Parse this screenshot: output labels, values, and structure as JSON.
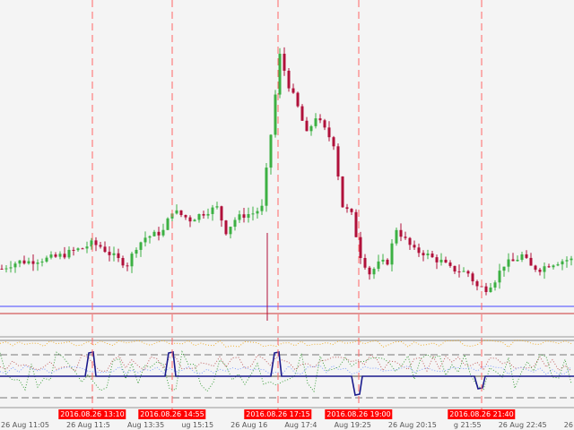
{
  "chart_data": {
    "type": "candlestick",
    "closes": [
      80,
      85,
      88,
      88,
      90,
      91,
      93,
      96,
      100,
      103,
      108,
      105,
      97,
      90,
      85,
      105,
      115,
      118,
      122,
      145,
      140,
      135,
      140,
      145,
      148,
      122,
      135,
      140,
      142,
      148,
      230,
      318,
      285,
      260,
      230,
      250,
      235,
      220,
      150,
      140,
      95,
      75,
      85,
      88,
      125,
      112,
      100,
      98,
      92,
      88,
      80,
      78,
      75,
      60,
      58,
      68,
      85,
      88,
      95,
      82,
      80,
      85,
      88,
      90
    ],
    "horizontal_lines": [
      {
        "color": "#4444ff"
      },
      {
        "color": "#cc3333"
      }
    ],
    "bull_color": "#3cb043",
    "bear_color": "#b0103a"
  },
  "indicator": {
    "main_line_color": "#1a1a8c",
    "dotted_colors": [
      "#f0b030",
      "#40a040",
      "#c06060",
      "#80a0ff"
    ]
  },
  "time_axis": {
    "labels": [
      {
        "text": "26 Aug 11:05",
        "highlight": false
      },
      {
        "text": "26 Aug 11:5",
        "highlight": false
      },
      {
        "text": "2016.08.26 13:10",
        "highlight": true
      },
      {
        "text": "Aug 13:35",
        "highlight": false
      },
      {
        "text": "2016.08.26 14:55",
        "highlight": true
      },
      {
        "text": "ug 15:15",
        "highlight": false
      },
      {
        "text": "26 Aug 16",
        "highlight": false
      },
      {
        "text": "2016.08.26 17:15",
        "highlight": true
      },
      {
        "text": "Aug 17:4",
        "highlight": false
      },
      {
        "text": "2016.08.26 19:00",
        "highlight": true
      },
      {
        "text": "Aug 19:25",
        "highlight": false
      },
      {
        "text": "26 Aug 20:15",
        "highlight": false
      },
      {
        "text": "2016.08.26 21:40",
        "highlight": true
      },
      {
        "text": "g 21:55",
        "highlight": false
      },
      {
        "text": "26 Aug 22:45",
        "highlight": false
      },
      {
        "text": "26",
        "highlight": false
      }
    ]
  },
  "colors": {
    "marker_line": "#ff6666",
    "background": "#f4f4f4"
  }
}
